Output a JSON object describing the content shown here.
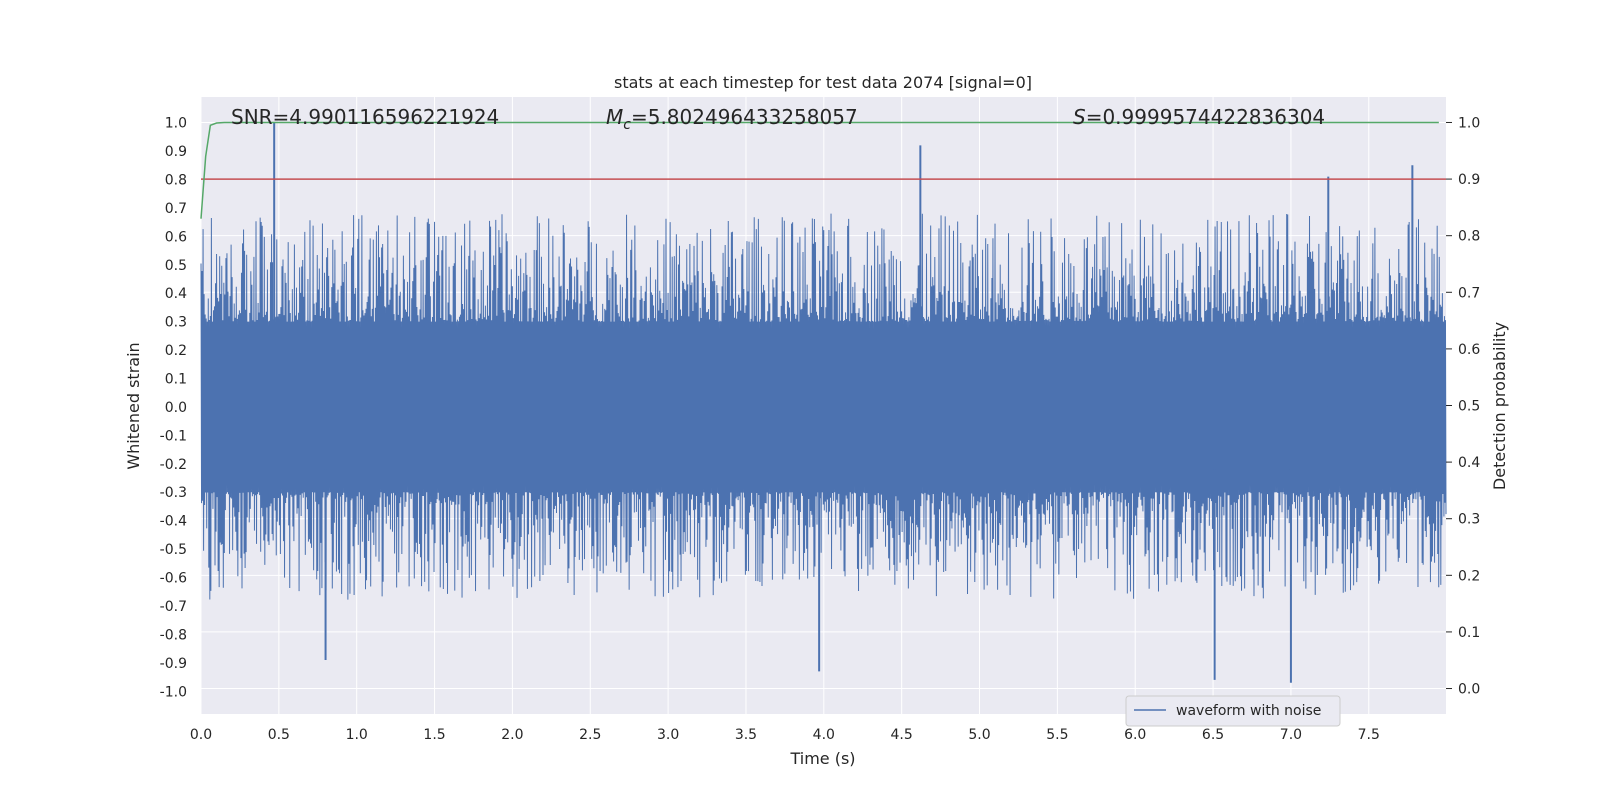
{
  "chart_data": {
    "type": "line",
    "title": "stats at each timestep for test data 2074 [signal=0]",
    "xlabel": "Time (s)",
    "ylabel_left": "Whitened strain",
    "ylabel_right": "Detection probability",
    "xlim": [
      0.0,
      7.996
    ],
    "ylim_left": [
      -1.08,
      1.09
    ],
    "ylim_right": [
      -0.045,
      1.045
    ],
    "x_ticks": [
      "0.0",
      "0.5",
      "1.0",
      "1.5",
      "2.0",
      "2.5",
      "3.0",
      "3.5",
      "4.0",
      "4.5",
      "5.0",
      "5.5",
      "6.0",
      "6.5",
      "7.0",
      "7.5"
    ],
    "y_left_ticks": [
      "1.0",
      "0.9",
      "0.8",
      "0.7",
      "0.6",
      "0.5",
      "0.4",
      "0.3",
      "0.2",
      "0.1",
      "0.0",
      "-0.1",
      "-0.2",
      "-0.3",
      "-0.4",
      "-0.5",
      "-0.6",
      "-0.7",
      "-0.8",
      "-0.9",
      "-1.0"
    ],
    "y_right_ticks": [
      "1.0",
      "0.9",
      "0.8",
      "0.7",
      "0.6",
      "0.5",
      "0.4",
      "0.3",
      "0.2",
      "0.1",
      "0.0"
    ],
    "annotations": {
      "snr": "SNR=4.990116596221924",
      "mc_symbol": "M",
      "mc_sub": "c",
      "mc_value": "=5.802496433258057",
      "s_symbol": "S",
      "s_value": "=0.9999574422836304"
    },
    "grid": true,
    "legend_position": "lower right",
    "series": [
      {
        "name": "waveform with noise",
        "axis": "left",
        "color": "#4c72b0",
        "envelope_note": "dense noise band",
        "notable_peaks": [
          {
            "x": 0.47,
            "y": 1.0
          },
          {
            "x": 4.62,
            "y": 0.92
          },
          {
            "x": 7.24,
            "y": 0.81
          },
          {
            "x": 7.78,
            "y": 0.85
          }
        ],
        "notable_troughs": [
          {
            "x": 3.97,
            "y": -0.93
          },
          {
            "x": 6.51,
            "y": -0.96
          },
          {
            "x": 7.0,
            "y": -0.97
          },
          {
            "x": 0.8,
            "y": -0.89
          }
        ]
      },
      {
        "axis": "right",
        "color": "#55a868",
        "x": [
          0.0,
          0.03,
          0.06,
          0.1,
          0.15,
          7.95
        ],
        "y": [
          0.83,
          0.94,
          0.995,
          0.999,
          1.0,
          1.0
        ]
      },
      {
        "axis": "right",
        "color": "#c44e52",
        "x": [
          0.0,
          7.996
        ],
        "y": [
          0.9,
          0.9
        ]
      }
    ]
  },
  "colors": {
    "plot_bg": "#eaeaf2",
    "grid": "#ffffff",
    "waveform": "#4c72b0",
    "probability": "#55a868",
    "threshold": "#c44e52"
  }
}
